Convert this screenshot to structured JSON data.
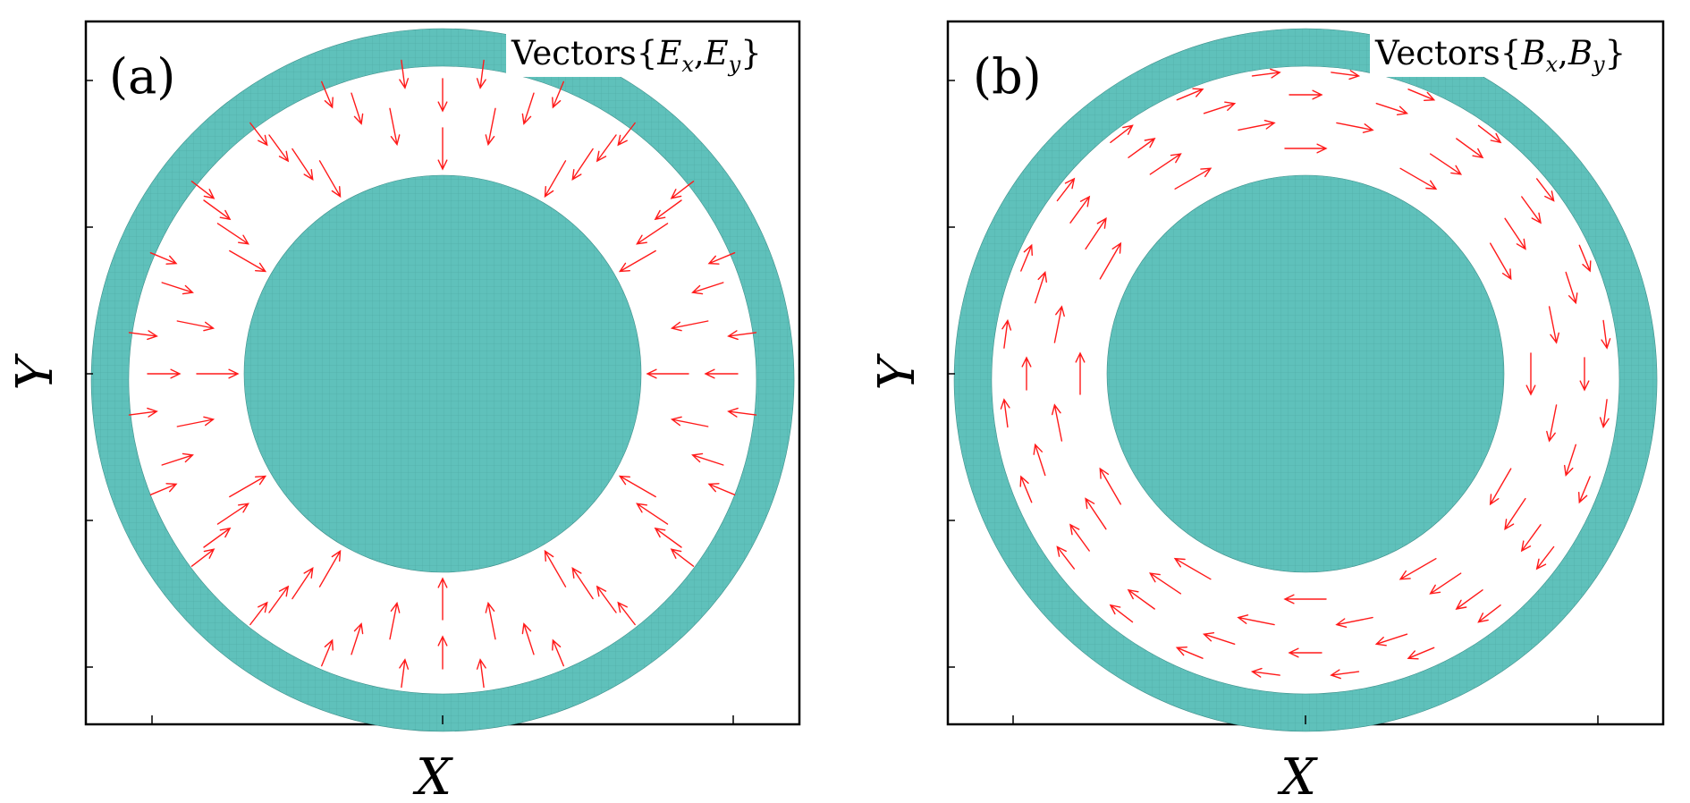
{
  "panels": [
    {
      "id": "a",
      "label": "(a)",
      "legend": {
        "prefix": "Vectors",
        "open": "{",
        "c1": "E",
        "s1": "x",
        "comma": ",",
        "c2": "E",
        "s2": "y",
        "close": "}"
      },
      "xlabel": "X",
      "ylabel": "Y",
      "field": "radial"
    },
    {
      "id": "b",
      "label": "(b)",
      "legend": {
        "prefix": "Vectors",
        "open": "{",
        "c1": "B",
        "s1": "x",
        "comma": ",",
        "c2": "B",
        "s2": "y",
        "close": "}"
      },
      "xlabel": "X",
      "ylabel": "Y",
      "field": "azimuthal"
    }
  ],
  "colors": {
    "conductor": "#5fc1bb",
    "conductor_edge": "#3e8f8a",
    "arrow": "#ff1a1a",
    "frame": "#000000"
  }
}
